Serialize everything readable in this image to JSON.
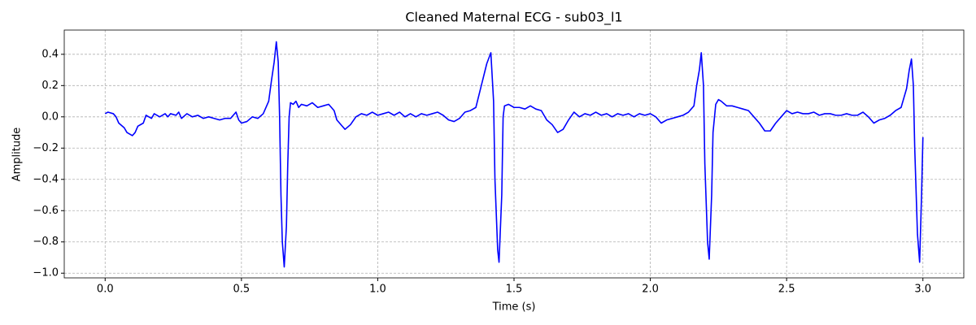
{
  "chart_data": {
    "type": "line",
    "title": "Cleaned Maternal ECG - sub03_l1",
    "xlabel": "Time (s)",
    "ylabel": "Amplitude",
    "grid": true,
    "xlim": [
      -0.15,
      3.15
    ],
    "ylim": [
      -1.03,
      0.555
    ],
    "xticks": [
      {
        "value": 0,
        "label": "0.0"
      },
      {
        "value": 0.5,
        "label": "0.5"
      },
      {
        "value": 1,
        "label": "1.0"
      },
      {
        "value": 1.5,
        "label": "1.5"
      },
      {
        "value": 2,
        "label": "2.0"
      },
      {
        "value": 2.5,
        "label": "2.5"
      },
      {
        "value": 3,
        "label": "3.0"
      }
    ],
    "yticks": [
      {
        "value": -1,
        "label": "−1.0"
      },
      {
        "value": -0.8,
        "label": "−0.8"
      },
      {
        "value": -0.6,
        "label": "−0.6"
      },
      {
        "value": -0.4,
        "label": "−0.4"
      },
      {
        "value": -0.2,
        "label": "−0.2"
      },
      {
        "value": 0,
        "label": "0.0"
      },
      {
        "value": 0.2,
        "label": "0.2"
      },
      {
        "value": 0.4,
        "label": "0.4"
      }
    ],
    "x": [
      0.0,
      0.01,
      0.03,
      0.04,
      0.05,
      0.07,
      0.08,
      0.1,
      0.11,
      0.12,
      0.14,
      0.15,
      0.16,
      0.17,
      0.18,
      0.2,
      0.22,
      0.23,
      0.24,
      0.26,
      0.27,
      0.28,
      0.3,
      0.32,
      0.34,
      0.36,
      0.38,
      0.4,
      0.42,
      0.44,
      0.46,
      0.48,
      0.49,
      0.5,
      0.52,
      0.54,
      0.56,
      0.58,
      0.6,
      0.61,
      0.62,
      0.628,
      0.635,
      0.64,
      0.645,
      0.65,
      0.657,
      0.665,
      0.67,
      0.675,
      0.68,
      0.69,
      0.7,
      0.71,
      0.72,
      0.74,
      0.76,
      0.78,
      0.8,
      0.82,
      0.84,
      0.85,
      0.87,
      0.88,
      0.9,
      0.92,
      0.94,
      0.96,
      0.98,
      1.0,
      1.02,
      1.04,
      1.06,
      1.08,
      1.1,
      1.12,
      1.14,
      1.16,
      1.18,
      1.2,
      1.22,
      1.24,
      1.26,
      1.28,
      1.3,
      1.32,
      1.34,
      1.36,
      1.38,
      1.4,
      1.415,
      1.425,
      1.43,
      1.44,
      1.445,
      1.455,
      1.46,
      1.465,
      1.48,
      1.5,
      1.52,
      1.54,
      1.56,
      1.58,
      1.6,
      1.62,
      1.64,
      1.66,
      1.68,
      1.7,
      1.72,
      1.74,
      1.76,
      1.78,
      1.8,
      1.82,
      1.84,
      1.86,
      1.88,
      1.9,
      1.92,
      1.94,
      1.96,
      1.98,
      2.0,
      2.02,
      2.04,
      2.06,
      2.08,
      2.1,
      2.12,
      2.14,
      2.16,
      2.17,
      2.18,
      2.187,
      2.195,
      2.2,
      2.21,
      2.216,
      2.225,
      2.23,
      2.24,
      2.25,
      2.26,
      2.28,
      2.3,
      2.32,
      2.34,
      2.36,
      2.38,
      2.4,
      2.42,
      2.44,
      2.46,
      2.48,
      2.5,
      2.52,
      2.54,
      2.56,
      2.58,
      2.6,
      2.62,
      2.64,
      2.66,
      2.68,
      2.7,
      2.72,
      2.74,
      2.76,
      2.78,
      2.8,
      2.82,
      2.84,
      2.86,
      2.88,
      2.9,
      2.92,
      2.94,
      2.95,
      2.958,
      2.965,
      2.97,
      2.98,
      2.988,
      2.995,
      3.0
    ],
    "series": [
      {
        "color": "#0000ff",
        "values": [
          0.02,
          0.03,
          0.02,
          0.0,
          -0.04,
          -0.07,
          -0.1,
          -0.12,
          -0.1,
          -0.06,
          -0.04,
          0.01,
          0.0,
          -0.01,
          0.02,
          0.0,
          0.02,
          0.0,
          0.02,
          0.01,
          0.03,
          -0.01,
          0.02,
          0.0,
          0.01,
          -0.01,
          0.0,
          -0.01,
          -0.02,
          -0.01,
          -0.01,
          0.03,
          -0.02,
          -0.04,
          -0.03,
          0.0,
          -0.01,
          0.02,
          0.1,
          0.23,
          0.35,
          0.48,
          0.35,
          0.0,
          -0.5,
          -0.8,
          -0.96,
          -0.7,
          -0.3,
          0.0,
          0.09,
          0.08,
          0.1,
          0.06,
          0.08,
          0.07,
          0.09,
          0.06,
          0.07,
          0.08,
          0.04,
          -0.02,
          -0.06,
          -0.08,
          -0.05,
          0.0,
          0.02,
          0.01,
          0.03,
          0.01,
          0.02,
          0.03,
          0.01,
          0.03,
          0.0,
          0.02,
          0.0,
          0.02,
          0.01,
          0.02,
          0.03,
          0.01,
          -0.02,
          -0.03,
          -0.01,
          0.03,
          0.04,
          0.06,
          0.2,
          0.34,
          0.41,
          0.1,
          -0.4,
          -0.85,
          -0.93,
          -0.5,
          0.0,
          0.07,
          0.08,
          0.06,
          0.06,
          0.05,
          0.07,
          0.05,
          0.04,
          -0.02,
          -0.05,
          -0.1,
          -0.08,
          -0.02,
          0.03,
          0.0,
          0.02,
          0.01,
          0.03,
          0.01,
          0.02,
          0.0,
          0.02,
          0.01,
          0.02,
          0.0,
          0.02,
          0.01,
          0.02,
          0.0,
          -0.04,
          -0.02,
          -0.01,
          0.0,
          0.01,
          0.03,
          0.07,
          0.2,
          0.3,
          0.41,
          0.2,
          -0.3,
          -0.8,
          -0.91,
          -0.5,
          -0.1,
          0.08,
          0.11,
          0.1,
          0.07,
          0.07,
          0.06,
          0.05,
          0.04,
          0.0,
          -0.04,
          -0.09,
          -0.09,
          -0.04,
          0.0,
          0.04,
          0.02,
          0.03,
          0.02,
          0.02,
          0.03,
          0.01,
          0.02,
          0.02,
          0.01,
          0.01,
          0.02,
          0.01,
          0.01,
          0.03,
          0.0,
          -0.04,
          -0.02,
          -0.01,
          0.01,
          0.04,
          0.06,
          0.18,
          0.3,
          0.37,
          0.2,
          -0.2,
          -0.75,
          -0.93,
          -0.5,
          -0.13
        ]
      }
    ]
  }
}
